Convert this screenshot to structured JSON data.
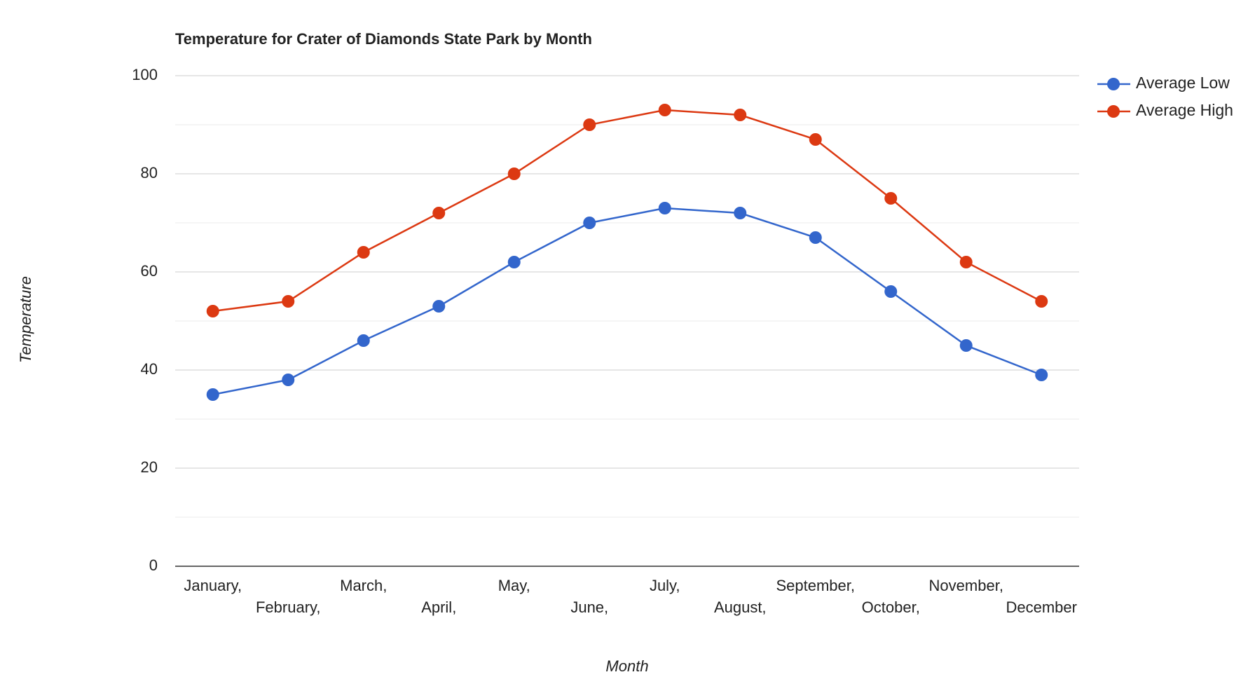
{
  "chart_data": {
    "type": "line",
    "title": "Temperature for Crater of Diamonds State Park by Month",
    "x_label": "Month",
    "y_label": "Temperature",
    "categories": [
      "January,",
      "February,",
      "March,",
      "April,",
      "May,",
      "June,",
      "July,",
      "August,",
      "September,",
      "October,",
      "November,",
      "December"
    ],
    "series": [
      {
        "name": "Average Low",
        "color": "#3366cc",
        "values": [
          35,
          38,
          46,
          53,
          62,
          70,
          73,
          72,
          67,
          56,
          45,
          39
        ]
      },
      {
        "name": "Average High",
        "color": "#dc3912",
        "values": [
          52,
          54,
          64,
          72,
          80,
          90,
          93,
          92,
          87,
          75,
          62,
          54
        ]
      }
    ],
    "ylim": [
      0,
      100
    ],
    "yticks": [
      0,
      20,
      40,
      60,
      80,
      100
    ],
    "minor_yticks": [
      10,
      30,
      50,
      70,
      90
    ],
    "grid": true,
    "legend": "right"
  }
}
